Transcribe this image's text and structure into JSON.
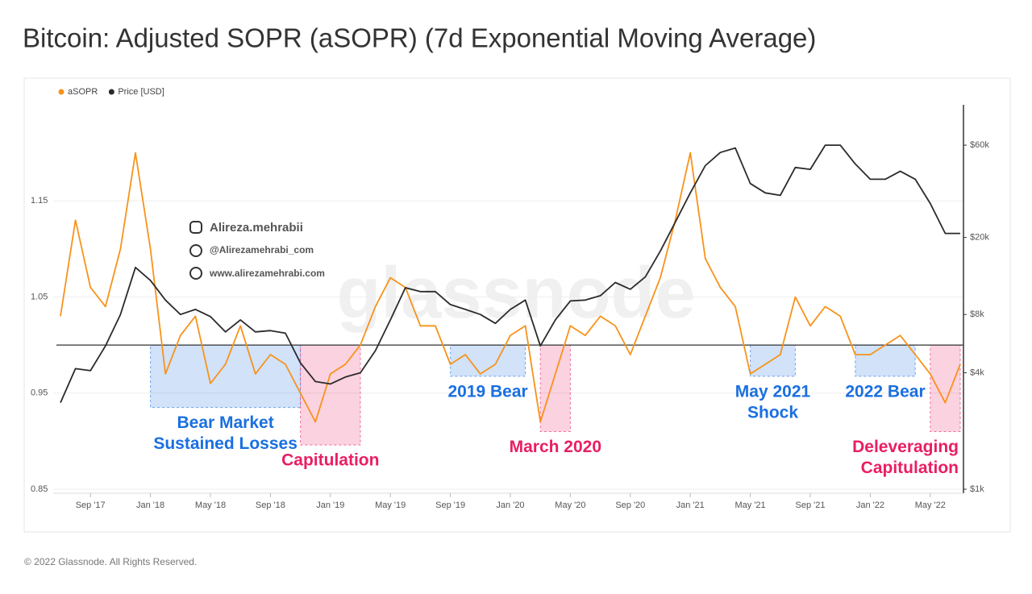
{
  "chart_data": {
    "type": "line",
    "title": "Bitcoin: Adjusted SOPR (aSOPR) (7d Exponential Moving Average)",
    "footer": "© 2022 Glassnode. All Rights Reserved.",
    "watermarks": [
      "glassnode",
      "Alireza.mehrabii",
      "@Alirezamehrabi_com",
      "www.alirezamehrabi.com"
    ],
    "x": [
      "2017-07",
      "2017-08",
      "2017-09",
      "2017-10",
      "2017-11",
      "2017-12",
      "2018-01",
      "2018-02",
      "2018-03",
      "2018-04",
      "2018-05",
      "2018-06",
      "2018-07",
      "2018-08",
      "2018-09",
      "2018-10",
      "2018-11",
      "2018-12",
      "2019-01",
      "2019-02",
      "2019-03",
      "2019-04",
      "2019-05",
      "2019-06",
      "2019-07",
      "2019-08",
      "2019-09",
      "2019-10",
      "2019-11",
      "2019-12",
      "2020-01",
      "2020-02",
      "2020-03",
      "2020-04",
      "2020-05",
      "2020-06",
      "2020-07",
      "2020-08",
      "2020-09",
      "2020-10",
      "2020-11",
      "2020-12",
      "2021-01",
      "2021-02",
      "2021-03",
      "2021-04",
      "2021-05",
      "2021-06",
      "2021-07",
      "2021-08",
      "2021-09",
      "2021-10",
      "2021-11",
      "2021-12",
      "2022-01",
      "2022-02",
      "2022-03",
      "2022-04",
      "2022-05",
      "2022-06",
      "2022-07"
    ],
    "xlim": [
      "2017-07",
      "2022-07"
    ],
    "xticks": [
      {
        "value": "2017-09",
        "label": "Sep '17"
      },
      {
        "value": "2018-01",
        "label": "Jan '18"
      },
      {
        "value": "2018-05",
        "label": "May '18"
      },
      {
        "value": "2018-09",
        "label": "Sep '18"
      },
      {
        "value": "2019-01",
        "label": "Jan '19"
      },
      {
        "value": "2019-05",
        "label": "May '19"
      },
      {
        "value": "2019-09",
        "label": "Sep '19"
      },
      {
        "value": "2020-01",
        "label": "Jan '20"
      },
      {
        "value": "2020-05",
        "label": "May '20"
      },
      {
        "value": "2020-09",
        "label": "Sep '20"
      },
      {
        "value": "2021-01",
        "label": "Jan '21"
      },
      {
        "value": "2021-05",
        "label": "May '21"
      },
      {
        "value": "2021-09",
        "label": "Sep '21"
      },
      {
        "value": "2022-01",
        "label": "Jan '22"
      },
      {
        "value": "2022-05",
        "label": "May '22"
      }
    ],
    "ylim": [
      0.85,
      1.25
    ],
    "yticks": [
      0.85,
      0.95,
      1.05,
      1.15
    ],
    "y2lim": [
      1000,
      97000
    ],
    "y2log": true,
    "y2ticks": [
      {
        "value": 1000,
        "label": "$1k"
      },
      {
        "value": 4000,
        "label": "$4k"
      },
      {
        "value": 8000,
        "label": "$8k"
      },
      {
        "value": 20000,
        "label": "$20k"
      },
      {
        "value": 60000,
        "label": "$60k"
      }
    ],
    "grid": true,
    "reference_line": 1,
    "series": [
      {
        "name": "aSOPR",
        "color": "#f7931a",
        "values": [
          1.03,
          1.13,
          1.06,
          1.04,
          1.1,
          1.2,
          1.1,
          0.97,
          1.01,
          1.03,
          0.96,
          0.98,
          1.02,
          0.97,
          0.99,
          0.98,
          0.95,
          0.92,
          0.97,
          0.98,
          1.0,
          1.04,
          1.07,
          1.06,
          1.02,
          1.02,
          0.98,
          0.99,
          0.97,
          0.98,
          1.01,
          1.02,
          0.92,
          0.97,
          1.02,
          1.01,
          1.03,
          1.02,
          0.99,
          1.03,
          1.07,
          1.13,
          1.2,
          1.09,
          1.06,
          1.04,
          0.97,
          0.98,
          0.99,
          1.05,
          1.02,
          1.04,
          1.03,
          0.99,
          0.99,
          1.0,
          1.01,
          0.99,
          0.97,
          0.94,
          0.98
        ]
      },
      {
        "name": "Price [USD]",
        "color": "#2b2b2b",
        "axis": "y2",
        "values": [
          2800,
          4200,
          4100,
          5500,
          8000,
          14000,
          12000,
          9500,
          8000,
          8500,
          7800,
          6500,
          7500,
          6500,
          6600,
          6400,
          4500,
          3600,
          3500,
          3800,
          4000,
          5200,
          7500,
          11000,
          10500,
          10500,
          9000,
          8500,
          8000,
          7200,
          8500,
          9500,
          5500,
          7500,
          9400,
          9500,
          10000,
          11700,
          10800,
          12500,
          17000,
          24000,
          34000,
          47000,
          55000,
          58000,
          38000,
          34000,
          33000,
          46000,
          45000,
          60000,
          60000,
          48000,
          40000,
          40000,
          44000,
          40000,
          30000,
          21000,
          21000
        ]
      }
    ],
    "regions": [
      {
        "label": [
          "Bear Market",
          "Sustained Losses"
        ],
        "x": [
          "2018-01",
          "2018-11"
        ],
        "y": [
          0.935,
          1.0
        ],
        "color": "#1a6fe0"
      },
      {
        "label": [
          "Capitulation"
        ],
        "x": [
          "2018-11",
          "2019-03"
        ],
        "y": [
          0.896,
          1.0
        ],
        "color": "#e91e63"
      },
      {
        "label": [
          "2019 Bear"
        ],
        "x": [
          "2019-09",
          "2020-02"
        ],
        "y": [
          0.9675,
          1.0
        ],
        "color": "#1a6fe0"
      },
      {
        "label": [
          "March 2020"
        ],
        "x": [
          "2020-03",
          "2020-05"
        ],
        "y": [
          0.91,
          1.0
        ],
        "color": "#e91e63"
      },
      {
        "label": [
          "May 2021",
          "Shock"
        ],
        "x": [
          "2021-05",
          "2021-08"
        ],
        "y": [
          0.9675,
          1.0
        ],
        "color": "#1a6fe0"
      },
      {
        "label": [
          "2022 Bear"
        ],
        "x": [
          "2021-12",
          "2022-04"
        ],
        "y": [
          0.9675,
          1.0
        ],
        "color": "#1a6fe0"
      },
      {
        "label": [
          "Deleveraging",
          "Capitulation"
        ],
        "x": [
          "2022-05",
          "2022-07"
        ],
        "y": [
          0.91,
          1.0
        ],
        "color": "#e91e63"
      }
    ]
  }
}
